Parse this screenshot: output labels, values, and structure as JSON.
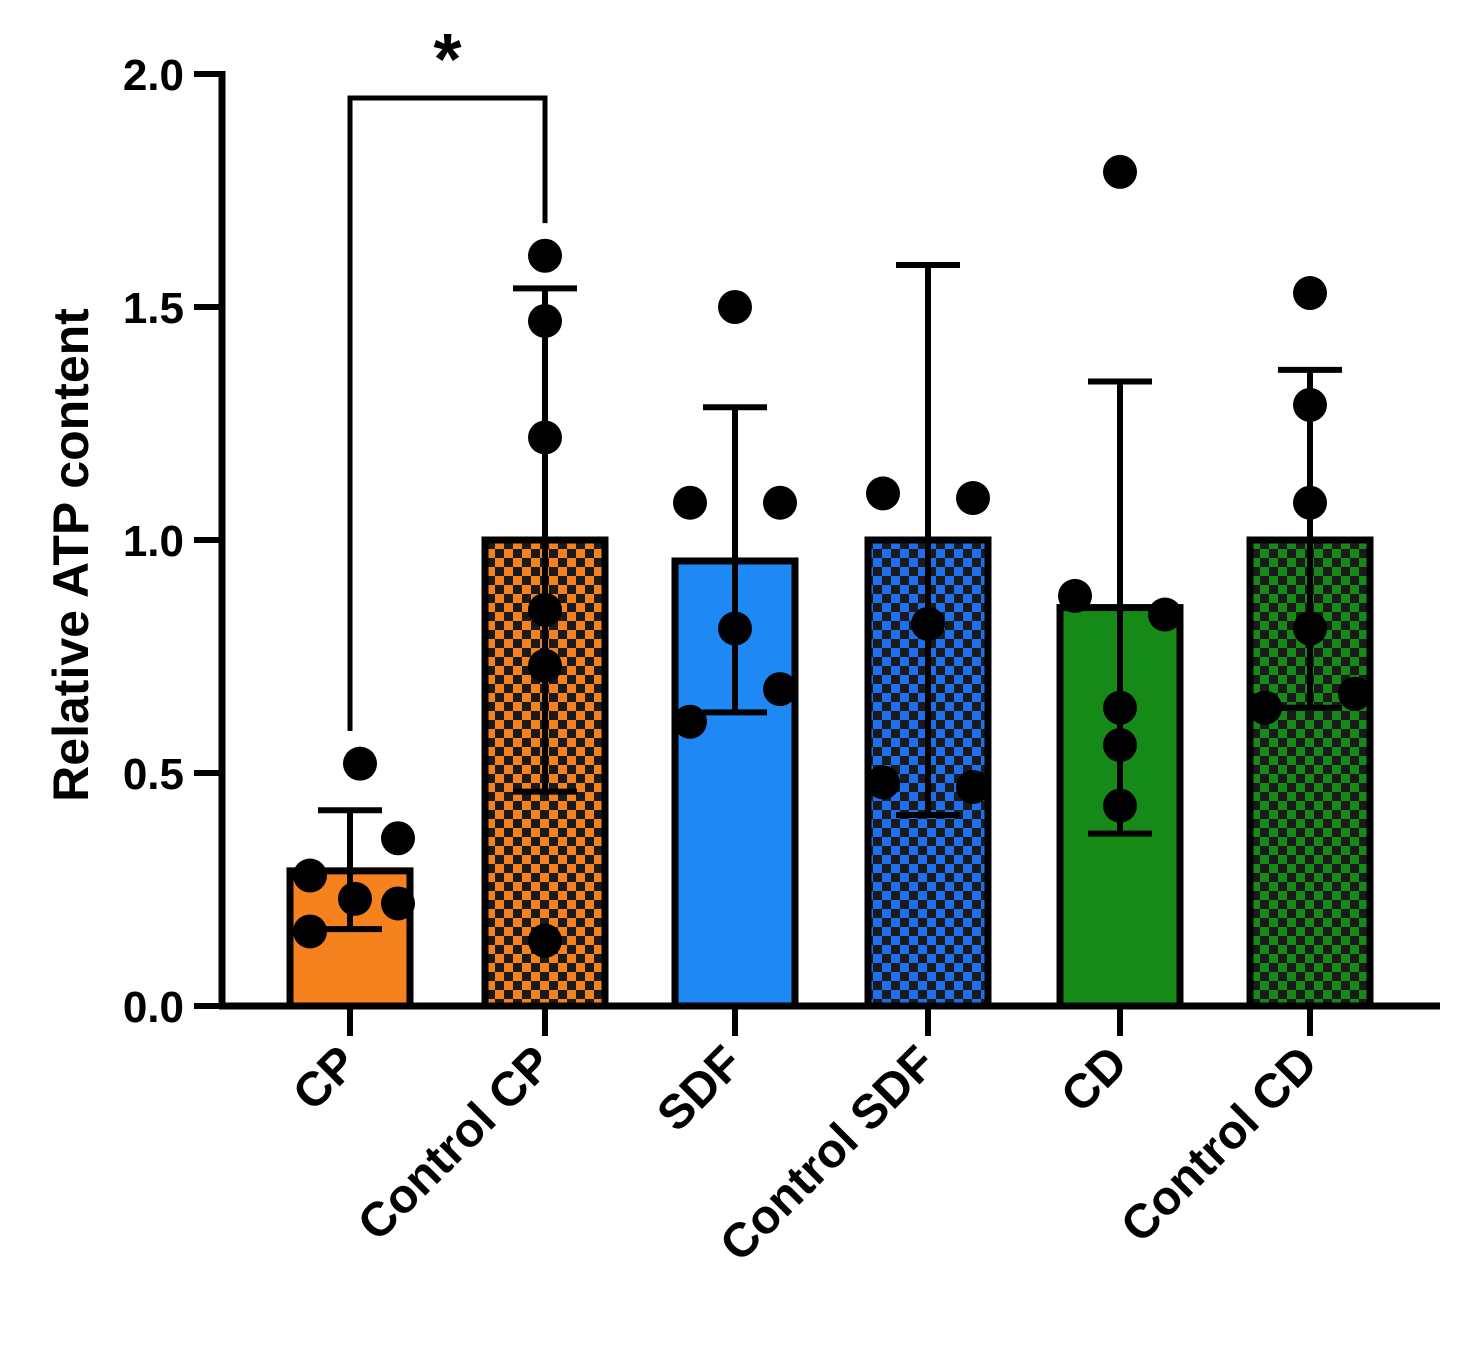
{
  "chart_data": {
    "type": "bar",
    "title": "",
    "xlabel": "",
    "ylabel": "Relative ATP content",
    "ylim": [
      0,
      2.0
    ],
    "yticks": [
      "0.0",
      "0.5",
      "1.0",
      "1.5",
      "2.0"
    ],
    "grid": false,
    "categories": [
      "CP",
      "Control CP",
      "SDF",
      "Control SDF",
      "CD",
      "Control CD"
    ],
    "bars": [
      {
        "name": "CP",
        "mean": 0.29,
        "error_low": 0.165,
        "error_high": 0.42,
        "color": "#f5821f",
        "pattern": "solid",
        "points": [
          0.52,
          0.36,
          0.28,
          0.23,
          0.22,
          0.16
        ]
      },
      {
        "name": "Control CP",
        "mean": 1.0,
        "error_low": 0.46,
        "error_high": 1.54,
        "color": "#f5821f",
        "pattern": "checkered",
        "points": [
          1.61,
          1.47,
          1.22,
          0.85,
          0.73,
          0.14
        ]
      },
      {
        "name": "SDF",
        "mean": 0.955,
        "error_low": 0.63,
        "error_high": 1.285,
        "color": "#1e88f5",
        "pattern": "solid",
        "points": [
          1.5,
          1.08,
          1.08,
          0.81,
          0.68,
          0.61
        ]
      },
      {
        "name": "Control SDF",
        "mean": 1.0,
        "error_low": 0.41,
        "error_high": 1.59,
        "color": "#1e6ef0",
        "pattern": "checkered",
        "points": [
          1.1,
          1.09,
          0.82,
          0.48,
          0.47
        ]
      },
      {
        "name": "CD",
        "mean": 0.855,
        "error_low": 0.37,
        "error_high": 1.34,
        "color": "#168a16",
        "pattern": "solid",
        "points": [
          1.79,
          0.88,
          0.84,
          0.64,
          0.56,
          0.43
        ]
      },
      {
        "name": "Control CD",
        "mean": 1.0,
        "error_low": 0.64,
        "error_high": 1.365,
        "color": "#168a16",
        "pattern": "checkered",
        "points": [
          1.53,
          1.29,
          1.08,
          0.81,
          0.67,
          0.64
        ]
      }
    ],
    "annotations": [
      {
        "text": "*",
        "from": "CP",
        "to": "Control CP",
        "type": "significance"
      }
    ]
  }
}
